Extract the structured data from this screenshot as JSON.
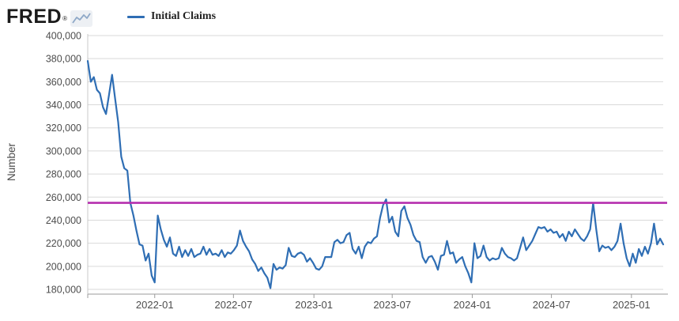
{
  "header": {
    "logo_text": "FRED",
    "logo_reg": "®",
    "legend_label": "Initial Claims"
  },
  "colors": {
    "background": "#ffffff",
    "series_line": "#2f6eb4",
    "threshold_line": "#b52fae",
    "grid": "#d9d9d9",
    "plot_border": "#c9c9c9",
    "axis_line": "#9b9b9b",
    "tick_text": "#4d4d4d",
    "axis_title_text": "#4d4d4d",
    "logo_text": "#1b1b1b",
    "logo_spark": "#8fa9c8",
    "legend_text": "#222222"
  },
  "chart_data": {
    "type": "line",
    "title": "",
    "ylabel": "Number",
    "xlabel": "",
    "grid": true,
    "legend_position": "top-left",
    "ylim": [
      180000,
      400000
    ],
    "start_date": "2021-07-31",
    "end_date": "2025-03-15",
    "frequency": "weekly",
    "y_ticks": [
      {
        "label": "400,000",
        "value": 400000
      },
      {
        "label": "380,000",
        "value": 380000
      },
      {
        "label": "360,000",
        "value": 360000
      },
      {
        "label": "340,000",
        "value": 340000
      },
      {
        "label": "320,000",
        "value": 320000
      },
      {
        "label": "300,000",
        "value": 300000
      },
      {
        "label": "280,000",
        "value": 280000
      },
      {
        "label": "260,000",
        "value": 260000
      },
      {
        "label": "240,000",
        "value": 240000
      },
      {
        "label": "220,000",
        "value": 220000
      },
      {
        "label": "200,000",
        "value": 200000
      },
      {
        "label": "180,000",
        "value": 180000
      }
    ],
    "x_ticks": [
      {
        "label": "2022-01",
        "week_index": 22
      },
      {
        "label": "2022-07",
        "week_index": 47.86
      },
      {
        "label": "2023-01",
        "week_index": 74.29
      },
      {
        "label": "2023-07",
        "week_index": 100
      },
      {
        "label": "2024-01",
        "week_index": 126.29
      },
      {
        "label": "2024-07",
        "week_index": 152.29
      },
      {
        "label": "2025-01",
        "week_index": 178.57
      }
    ],
    "threshold_line": {
      "value": 255000
    },
    "series": [
      {
        "name": "Initial Claims",
        "values": [
          378000,
          360000,
          364000,
          353000,
          350000,
          338000,
          332000,
          349000,
          366000,
          345000,
          325000,
          295000,
          285000,
          283000,
          255000,
          244000,
          231000,
          219000,
          218000,
          205000,
          211000,
          192000,
          186000,
          244000,
          232000,
          223000,
          217000,
          225000,
          211000,
          209000,
          217000,
          208000,
          214000,
          209000,
          215000,
          208000,
          210000,
          211000,
          217000,
          210000,
          215000,
          210000,
          211000,
          209000,
          214000,
          208000,
          212000,
          211000,
          214000,
          218000,
          231000,
          222000,
          217000,
          213000,
          206000,
          202000,
          196000,
          199000,
          194000,
          190000,
          181000,
          202000,
          197000,
          199000,
          198000,
          201000,
          216000,
          209000,
          208000,
          211000,
          212000,
          210000,
          204000,
          207000,
          203000,
          198000,
          197000,
          200000,
          208000,
          208000,
          208000,
          221000,
          223000,
          220000,
          221000,
          227000,
          229000,
          215000,
          211000,
          217000,
          207000,
          217000,
          221000,
          220000,
          224000,
          226000,
          242000,
          253000,
          258000,
          238000,
          243000,
          230000,
          226000,
          248000,
          252000,
          242000,
          236000,
          227000,
          222000,
          221000,
          208000,
          203000,
          208000,
          209000,
          204000,
          197000,
          209000,
          210000,
          222000,
          211000,
          212000,
          203000,
          206000,
          208000,
          200000,
          194000,
          186000,
          220000,
          207000,
          209000,
          218000,
          208000,
          205000,
          207000,
          206000,
          207000,
          216000,
          211000,
          208000,
          207000,
          205000,
          207000,
          216000,
          225000,
          214000,
          218000,
          222000,
          228000,
          234000,
          233000,
          234000,
          230000,
          232000,
          229000,
          230000,
          225000,
          228000,
          222000,
          230000,
          226000,
          232000,
          228000,
          224000,
          222000,
          226000,
          232000,
          255000,
          232000,
          213000,
          218000,
          216000,
          217000,
          214000,
          217000,
          222000,
          237000,
          220000,
          207000,
          200000,
          211000,
          203000,
          215000,
          209000,
          217000,
          211000,
          220000,
          237000,
          219000,
          224000,
          219000
        ]
      }
    ]
  }
}
